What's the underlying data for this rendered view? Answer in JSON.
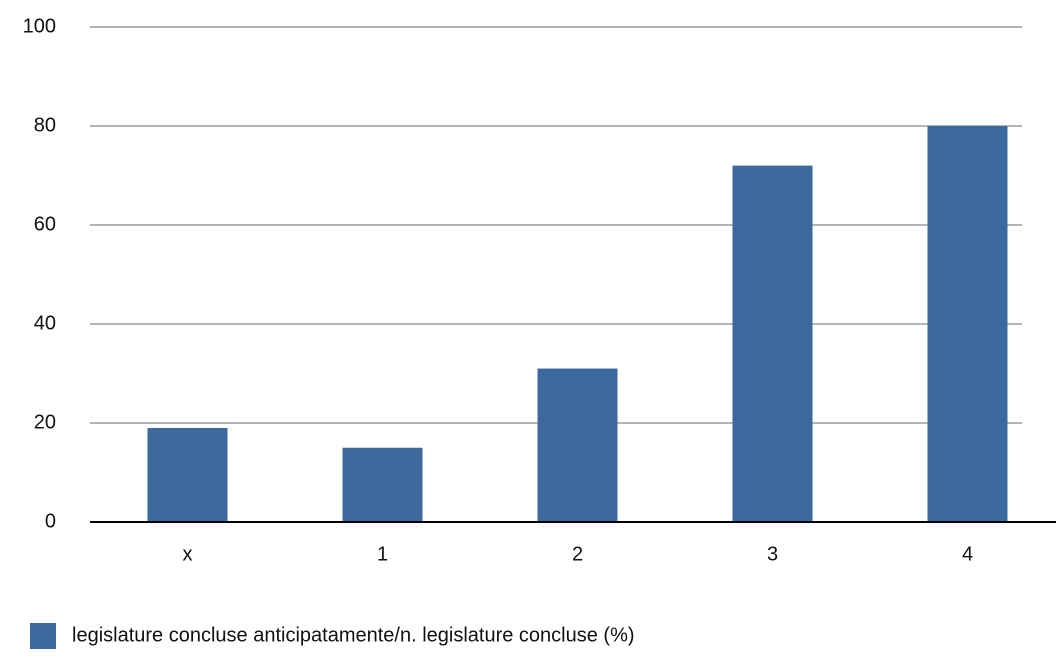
{
  "chart_data": {
    "type": "bar",
    "categories": [
      "x",
      "1",
      "2",
      "3",
      "4"
    ],
    "series": [
      {
        "name": "legislature concluse anticipatamente/n. legislature concluse (%)",
        "color": "#3d6a9c",
        "values": [
          19,
          15,
          31,
          72,
          80
        ]
      }
    ],
    "ylim": [
      0,
      100
    ],
    "yticks": [
      0,
      20,
      40,
      60,
      80,
      100
    ],
    "grid": true,
    "legend": "bottom-left"
  }
}
